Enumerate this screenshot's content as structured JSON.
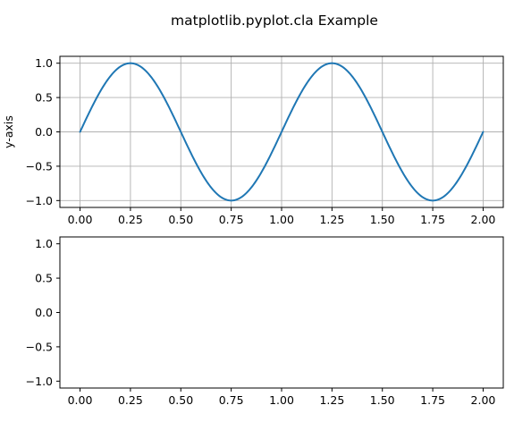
{
  "figure": {
    "suptitle": "matplotlib.pyplot.cla Example"
  },
  "chart_data": [
    {
      "type": "line",
      "title": "",
      "xlabel": "",
      "ylabel": "y-axis",
      "xlim": [
        -0.1,
        2.1
      ],
      "ylim": [
        -1.1,
        1.1
      ],
      "grid": true,
      "xticks": [
        0.0,
        0.25,
        0.5,
        0.75,
        1.0,
        1.25,
        1.5,
        1.75,
        2.0
      ],
      "xtick_labels": [
        "0.00",
        "0.25",
        "0.50",
        "0.75",
        "1.00",
        "1.25",
        "1.50",
        "1.75",
        "2.00"
      ],
      "yticks": [
        -1.0,
        -0.5,
        0.0,
        0.5,
        1.0
      ],
      "ytick_labels": [
        "−1.0",
        "−0.5",
        "0.0",
        "0.5",
        "1.0"
      ],
      "series": [
        {
          "color": "#1f77b4",
          "function": "sin(2*pi*x)",
          "x_start": 0.0,
          "x_end": 2.0
        }
      ]
    },
    {
      "type": "line",
      "title": "",
      "xlabel": "",
      "ylabel": "",
      "xlim": [
        -0.1,
        2.1
      ],
      "ylim": [
        -1.1,
        1.1
      ],
      "grid": false,
      "xticks": [
        0.0,
        0.25,
        0.5,
        0.75,
        1.0,
        1.25,
        1.5,
        1.75,
        2.0
      ],
      "xtick_labels": [
        "0.00",
        "0.25",
        "0.50",
        "0.75",
        "1.00",
        "1.25",
        "1.50",
        "1.75",
        "2.00"
      ],
      "yticks": [
        -1.0,
        -0.5,
        0.0,
        0.5,
        1.0
      ],
      "ytick_labels": [
        "−1.0",
        "−0.5",
        "0.0",
        "0.5",
        "1.0"
      ],
      "series": []
    }
  ]
}
